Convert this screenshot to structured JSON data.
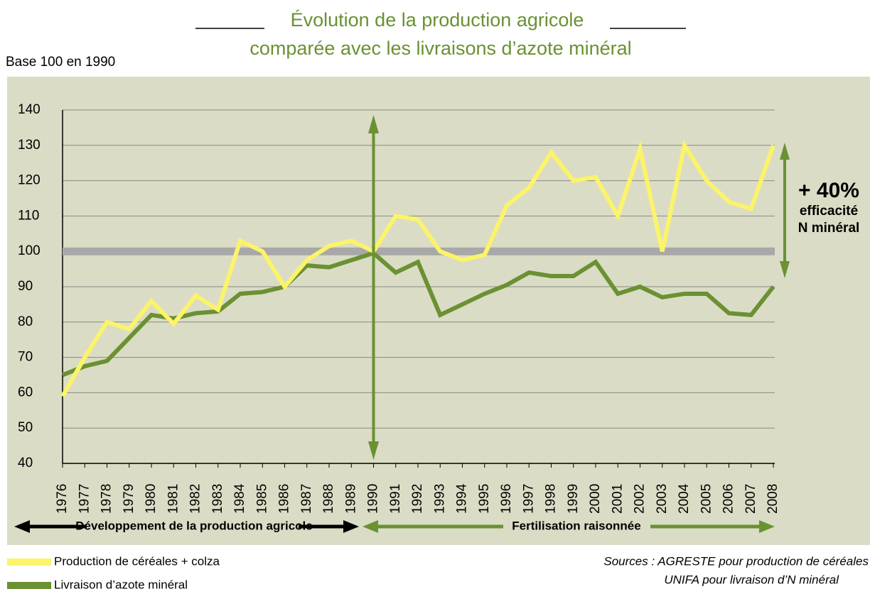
{
  "chart_data": {
    "type": "line",
    "title": "Évolution de la production agricole",
    "subtitle": "comparée avec les livraisons d’azote minéral",
    "y_axis_label": "Base 100 en 1990",
    "categories": [
      "1976",
      "1977",
      "1978",
      "1979",
      "1980",
      "1981",
      "1982",
      "1983",
      "1984",
      "1985",
      "1986",
      "1987",
      "1988",
      "1989",
      "1990",
      "1991",
      "1992",
      "1993",
      "1994",
      "1995",
      "1996",
      "1997",
      "1998",
      "1999",
      "2000",
      "2001",
      "2002",
      "2003",
      "2004",
      "2005",
      "2006",
      "2007",
      "2008"
    ],
    "series": [
      {
        "name": "Production de céréales + colza",
        "color": "#fbf46a",
        "values": [
          59,
          70,
          80,
          78,
          86,
          79.5,
          87.5,
          83.5,
          103,
          100,
          90,
          97.5,
          101.5,
          103,
          100,
          110,
          109,
          100,
          97.5,
          99,
          113,
          118,
          128,
          120,
          121,
          110,
          129,
          100,
          130,
          120,
          114,
          112,
          130
        ]
      },
      {
        "name": "Livraison d’azote minéral",
        "color": "#6a9132",
        "values": [
          65,
          67.5,
          69,
          75.5,
          82,
          81,
          82.5,
          83,
          88,
          88.5,
          90,
          96,
          95.5,
          97.5,
          99.5,
          94,
          97,
          82,
          85,
          88,
          90.5,
          94,
          93,
          93,
          97,
          88,
          90,
          87,
          88,
          88,
          82.5,
          82,
          90
        ]
      }
    ],
    "reference_line": 100,
    "ylim": [
      40,
      140
    ],
    "yticks": [
      40,
      50,
      60,
      70,
      80,
      90,
      100,
      110,
      120,
      130,
      140
    ],
    "grid": true,
    "annotations": [
      "+ 40%",
      "efficacité",
      "N minéral"
    ],
    "phases": [
      "Développement de la production agricole",
      "Fertilisation raisonnée"
    ],
    "sources": [
      "Sources : AGRESTE pour production de céréales",
      "UNIFA pour livraison d’N minéral"
    ]
  }
}
